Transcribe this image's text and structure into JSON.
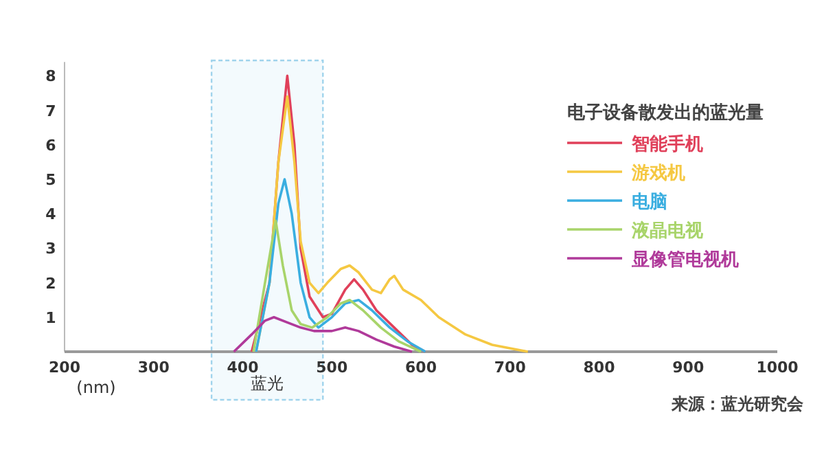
{
  "chart_data": {
    "type": "line",
    "xlabel": "(nm)",
    "legend_title": "电子设备散发出的蓝光量",
    "legend": "right",
    "grid": false,
    "marker": "none",
    "line_style": "solid",
    "xlim": [
      200,
      1000
    ],
    "xticks": [
      200,
      300,
      400,
      500,
      600,
      700,
      800,
      900,
      1000
    ],
    "ylim": [
      0,
      8.4
    ],
    "yticks": [
      1,
      2,
      3,
      4,
      5,
      6,
      7,
      8
    ],
    "bands": [
      {
        "axis": "x",
        "from": 365,
        "to": 490,
        "label": "蓝光",
        "color": "#9fd3ec"
      }
    ],
    "annotations": [
      "来源：蓝光研究会"
    ],
    "series": [
      {
        "name": "智能手机",
        "color": "#e0405a",
        "x": [
          410,
          430,
          440,
          450,
          458,
          465,
          475,
          490,
          500,
          515,
          525,
          535,
          550,
          570,
          590,
          605
        ],
        "values": [
          0,
          2,
          5.5,
          8.0,
          6,
          3,
          1.6,
          1.0,
          1.1,
          1.8,
          2.1,
          1.8,
          1.2,
          0.7,
          0.2,
          0
        ]
      },
      {
        "name": "游戏机",
        "color": "#f5c842",
        "x": [
          415,
          430,
          440,
          450,
          458,
          465,
          475,
          485,
          495,
          510,
          520,
          530,
          545,
          555,
          565,
          570,
          580,
          600,
          620,
          650,
          680,
          720
        ],
        "values": [
          0,
          2,
          5.5,
          7.4,
          5.5,
          3.2,
          2.0,
          1.7,
          2.0,
          2.4,
          2.5,
          2.3,
          1.8,
          1.7,
          2.1,
          2.2,
          1.8,
          1.5,
          1.0,
          0.5,
          0.2,
          0
        ]
      },
      {
        "name": "电脑",
        "color": "#3aaee0",
        "x": [
          415,
          430,
          440,
          447,
          455,
          465,
          475,
          485,
          500,
          515,
          530,
          545,
          565,
          585,
          605
        ],
        "values": [
          0,
          2,
          4.3,
          5.0,
          4,
          2,
          1.0,
          0.7,
          1.0,
          1.4,
          1.5,
          1.2,
          0.7,
          0.3,
          0
        ]
      },
      {
        "name": "液晶电视",
        "color": "#a8d46a",
        "x": [
          412,
          425,
          437,
          445,
          455,
          465,
          478,
          495,
          510,
          520,
          535,
          555,
          575,
          600
        ],
        "values": [
          0,
          2,
          3.8,
          2.5,
          1.2,
          0.8,
          0.7,
          1.0,
          1.4,
          1.5,
          1.2,
          0.7,
          0.3,
          0
        ]
      },
      {
        "name": "显像管电视机",
        "color": "#b03a9a",
        "x": [
          390,
          410,
          425,
          435,
          450,
          465,
          480,
          500,
          515,
          530,
          550,
          570,
          590
        ],
        "values": [
          0,
          0.5,
          0.9,
          1.0,
          0.85,
          0.7,
          0.6,
          0.6,
          0.7,
          0.6,
          0.35,
          0.15,
          0
        ]
      }
    ]
  }
}
